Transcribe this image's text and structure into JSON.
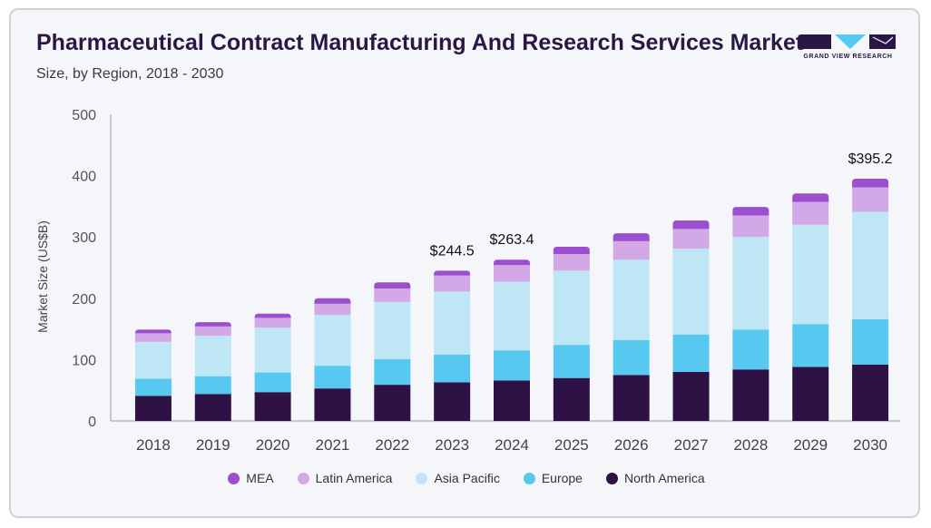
{
  "header": {
    "title": "Pharmaceutical Contract Manufacturing And Research Services Market",
    "subtitle": "Size, by Region, 2018 - 2030",
    "logo_text": "GRAND VIEW RESEARCH"
  },
  "colors": {
    "mea": "#9b4fcf",
    "latin_america": "#d3a8e6",
    "asia_pacific": "#bfe6f5",
    "europe": "#57c8ef",
    "north_america": "#2e1245",
    "brand": "#2b1745",
    "logo_accent": "#57c8ef"
  },
  "chart_data": {
    "type": "bar",
    "stacked": true,
    "title": "Pharmaceutical Contract Manufacturing And Research Services Market",
    "subtitle": "Size, by Region, 2018 - 2030",
    "xlabel": "",
    "ylabel": "Market Size (US$B)",
    "ylim": [
      0,
      500
    ],
    "yticks": [
      0,
      100,
      200,
      300,
      400,
      500
    ],
    "grid": false,
    "legend_position": "bottom",
    "categories": [
      "2018",
      "2019",
      "2020",
      "2021",
      "2022",
      "2023",
      "2024",
      "2025",
      "2026",
      "2027",
      "2028",
      "2029",
      "2030"
    ],
    "series": [
      {
        "name": "North America",
        "color": "#2e1245",
        "values": [
          41,
          44,
          47,
          53,
          59,
          63,
          66,
          70,
          75,
          80,
          84,
          88,
          92
        ]
      },
      {
        "name": "Europe",
        "color": "#57c8ef",
        "values": [
          28,
          29,
          32,
          37,
          42,
          45,
          49,
          54,
          57,
          61,
          65,
          70,
          74
        ]
      },
      {
        "name": "Asia Pacific",
        "color": "#bfe6f5",
        "values": [
          60,
          66,
          73,
          83,
          93,
          103,
          112,
          121,
          131,
          140,
          151,
          162,
          175
        ]
      },
      {
        "name": "Latin America",
        "color": "#d3a8e6",
        "values": [
          14,
          15,
          16,
          18,
          22,
          26,
          27,
          27,
          30,
          32,
          35,
          37,
          40
        ]
      },
      {
        "name": "MEA",
        "color": "#9b4fcf",
        "values": [
          6,
          7,
          7,
          9,
          10,
          8,
          9,
          12,
          13,
          14,
          14,
          14,
          14
        ]
      }
    ],
    "annotations": [
      {
        "category": "2023",
        "text": "$244.5"
      },
      {
        "category": "2024",
        "text": "$263.4"
      },
      {
        "category": "2030",
        "text": "$395.2"
      }
    ]
  },
  "legend": [
    {
      "label": "MEA",
      "color": "#9b4fcf"
    },
    {
      "label": "Latin America",
      "color": "#d3a8e6"
    },
    {
      "label": "Asia Pacific",
      "color": "#bfe6f5"
    },
    {
      "label": "Europe",
      "color": "#57c8ef"
    },
    {
      "label": "North America",
      "color": "#2e1245"
    }
  ]
}
